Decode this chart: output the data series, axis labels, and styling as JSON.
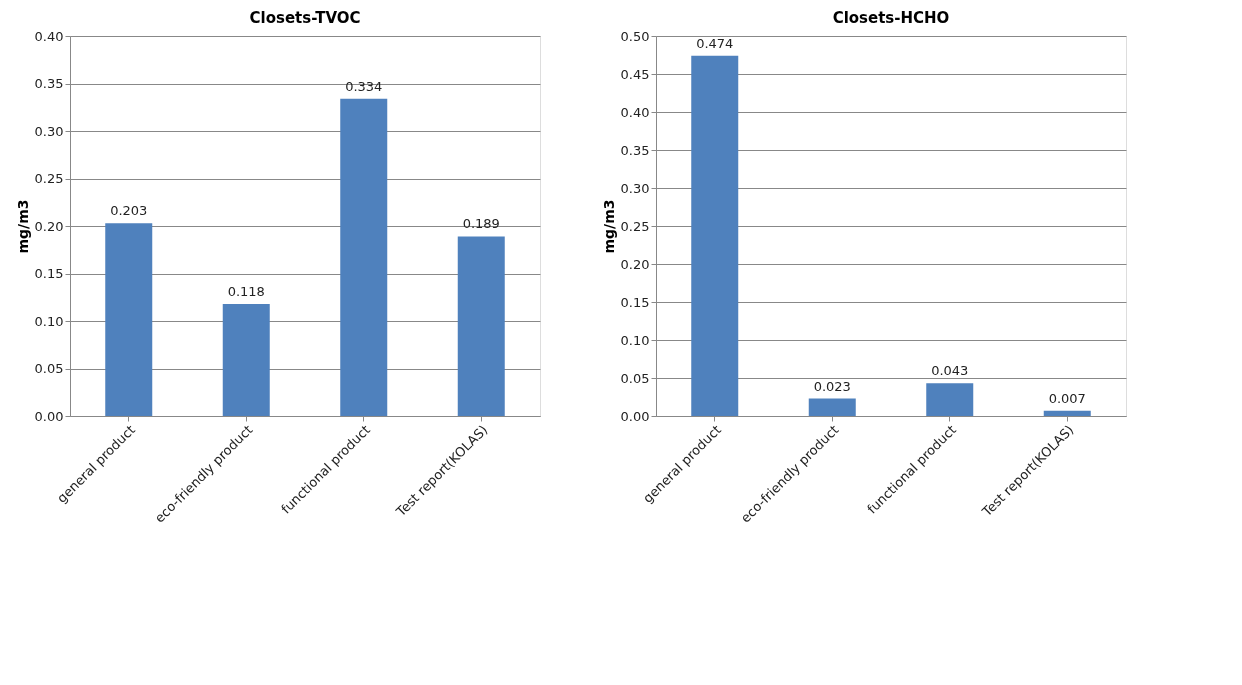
{
  "chart_data": [
    {
      "type": "bar",
      "title": "Closets-TVOC",
      "ylabel": "mg/m3",
      "categories": [
        "general product",
        "eco-friendly product",
        "functional product",
        "Test report(KOLAS)"
      ],
      "values": [
        0.203,
        0.118,
        0.334,
        0.189
      ],
      "color": "#4f81bd",
      "ylim": [
        0,
        0.4
      ],
      "yticks": [
        {
          "value": 0,
          "label": "0.00"
        },
        {
          "value": 0.05,
          "label": "0.05"
        },
        {
          "value": 0.1,
          "label": "0.10"
        },
        {
          "value": 0.15,
          "label": "0.15"
        },
        {
          "value": 0.2,
          "label": "0.20"
        },
        {
          "value": 0.25,
          "label": "0.25"
        },
        {
          "value": 0.3,
          "label": "0.30"
        },
        {
          "value": 0.35,
          "label": "0.35"
        },
        {
          "value": 0.4,
          "label": "0.40"
        }
      ],
      "grid": "y",
      "data_labels": true
    },
    {
      "type": "bar",
      "title": "Closets-HCHO",
      "ylabel": "mg/m3",
      "categories": [
        "general product",
        "eco-friendly product",
        "functional product",
        "Test report(KOLAS)"
      ],
      "values": [
        0.474,
        0.023,
        0.043,
        0.007
      ],
      "color": "#4f81bd",
      "ylim": [
        0,
        0.5
      ],
      "yticks": [
        {
          "value": 0,
          "label": "0.00"
        },
        {
          "value": 0.05,
          "label": "0.05"
        },
        {
          "value": 0.1,
          "label": "0.10"
        },
        {
          "value": 0.15,
          "label": "0.15"
        },
        {
          "value": 0.2,
          "label": "0.20"
        },
        {
          "value": 0.25,
          "label": "0.25"
        },
        {
          "value": 0.3,
          "label": "0.30"
        },
        {
          "value": 0.35,
          "label": "0.35"
        },
        {
          "value": 0.4,
          "label": "0.40"
        },
        {
          "value": 0.45,
          "label": "0.45"
        },
        {
          "value": 0.5,
          "label": "0.50"
        }
      ],
      "grid": "y",
      "data_labels": true
    }
  ]
}
